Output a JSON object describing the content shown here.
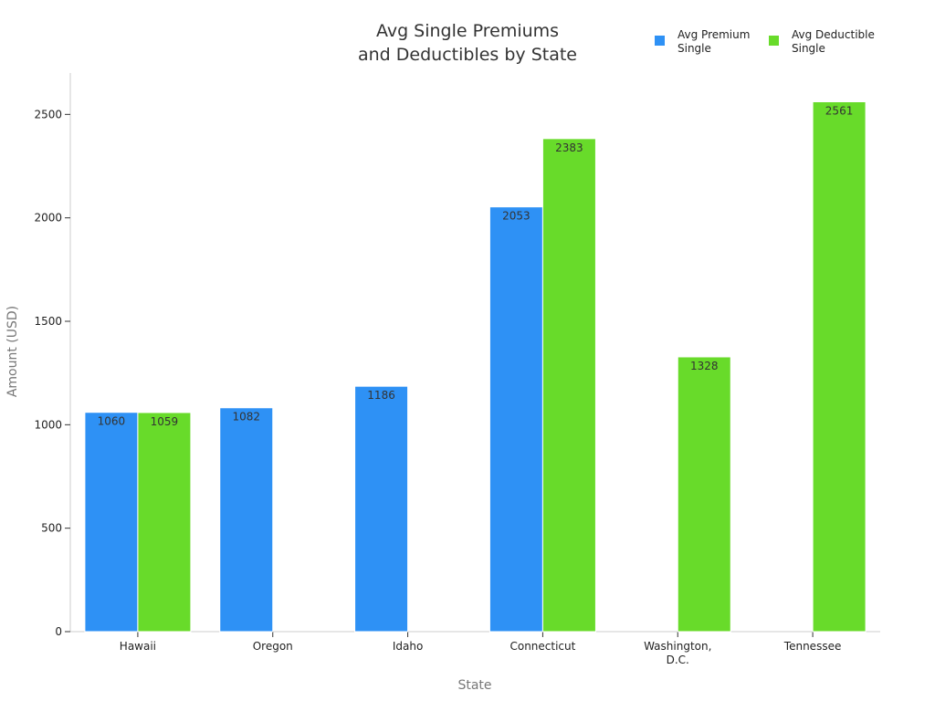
{
  "chart_data": {
    "type": "bar",
    "title": [
      "Avg Single Premiums",
      "and Deductibles by State"
    ],
    "xlabel": "State",
    "ylabel": "Amount (USD)",
    "ylim": [
      0,
      2700
    ],
    "yticks": [
      0,
      500,
      1000,
      1500,
      2000,
      2500
    ],
    "grid": false,
    "legend_position": "top-right",
    "categories": [
      [
        "Hawaii"
      ],
      [
        "Oregon"
      ],
      [
        "Idaho"
      ],
      [
        "Connecticut"
      ],
      [
        "Washington,",
        "D.C."
      ],
      [
        "Tennessee"
      ]
    ],
    "series": [
      {
        "name": [
          "Avg Premium",
          "Single"
        ],
        "color": "#2e91f5",
        "values": [
          1060,
          1082,
          1186,
          2053,
          null,
          null
        ]
      },
      {
        "name": [
          "Avg Deductible",
          "Single"
        ],
        "color": "#68db2a",
        "values": [
          1059,
          null,
          null,
          2383,
          1328,
          2561
        ]
      }
    ]
  }
}
